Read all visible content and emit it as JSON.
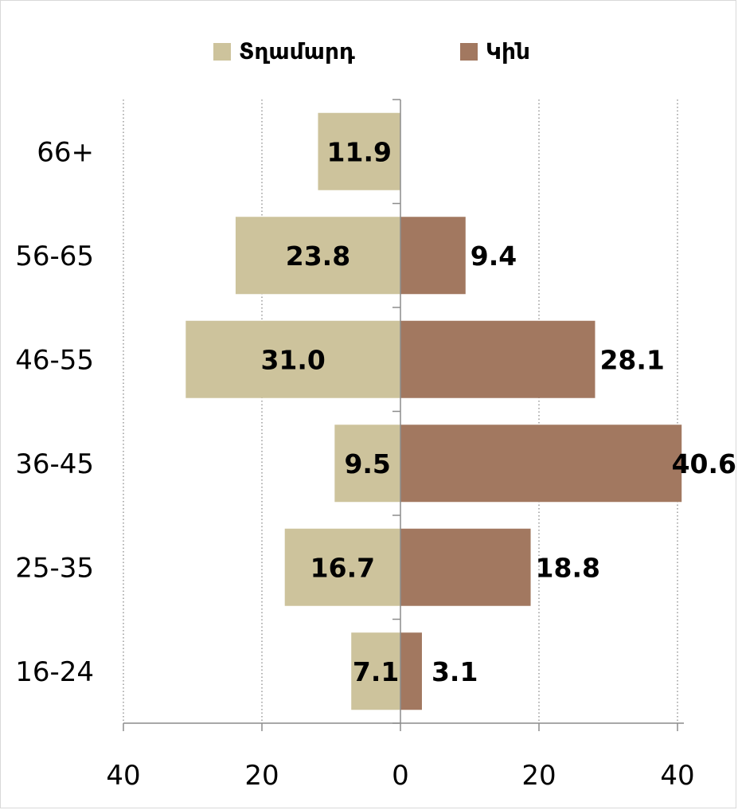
{
  "chart_data": {
    "type": "bar",
    "orientation": "horizontal",
    "layout": "population-pyramid",
    "categories": [
      "16-24",
      "25-35",
      "36-45",
      "46-55",
      "56-65",
      "66+"
    ],
    "series": [
      {
        "name": "Տղամարդ",
        "values": [
          7.1,
          16.7,
          9.5,
          31.0,
          23.8,
          11.9
        ],
        "labels": [
          "7.1",
          "16.7",
          "9.5",
          "31.0",
          "23.8",
          "11.9"
        ],
        "color": "#cdc39c"
      },
      {
        "name": "Կին",
        "values": [
          3.1,
          18.8,
          40.6,
          28.1,
          9.4,
          null
        ],
        "labels": [
          "3.1",
          "18.8",
          "40.6",
          "28.1",
          "9.4",
          ""
        ],
        "color": "#a27860"
      }
    ],
    "xlim": [
      -40,
      40
    ],
    "xticks": [
      -40,
      -20,
      0,
      20,
      40
    ],
    "xtick_labels": [
      "40",
      "20",
      "0",
      "20",
      "40"
    ],
    "grid": "vertical-dotted",
    "legend": "top-center",
    "title": "",
    "xlabel": "",
    "ylabel": ""
  }
}
